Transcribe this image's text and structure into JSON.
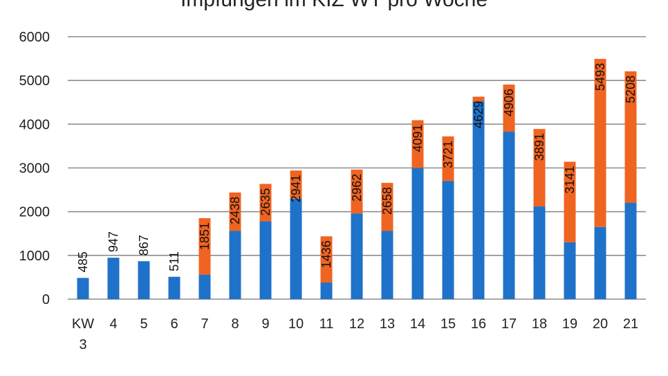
{
  "chart_data": {
    "type": "bar",
    "stacked": true,
    "title": "Impfungen im KIZ WT pro Woche",
    "xlabel": "",
    "ylabel": "",
    "ylim": [
      0,
      6000
    ],
    "yticks": [
      0,
      1000,
      2000,
      3000,
      4000,
      5000,
      6000
    ],
    "grid": true,
    "categories": [
      "KW 3",
      "4",
      "5",
      "6",
      "7",
      "8",
      "9",
      "10",
      "11",
      "12",
      "13",
      "14",
      "15",
      "16",
      "17",
      "18",
      "19",
      "20",
      "21"
    ],
    "series": [
      {
        "color": "#1f72c9",
        "values": [
          485,
          947,
          867,
          511,
          560,
          1560,
          1780,
          2300,
          380,
          1960,
          1560,
          3000,
          2700,
          4520,
          3830,
          2120,
          1300,
          1650,
          2200
        ]
      },
      {
        "color": "#f06421",
        "values": [
          0,
          0,
          0,
          0,
          1291,
          878,
          855,
          641,
          1056,
          1002,
          1098,
          1091,
          1021,
          109,
          1076,
          1771,
          1841,
          3843,
          3008
        ]
      }
    ],
    "totals": [
      485,
      947,
      867,
      511,
      1851,
      2438,
      2635,
      2941,
      1436,
      2962,
      2658,
      4091,
      3721,
      4629,
      4906,
      3891,
      3141,
      5493,
      5208
    ]
  }
}
